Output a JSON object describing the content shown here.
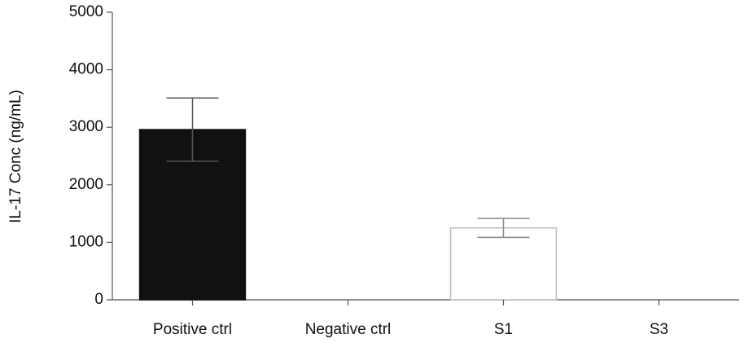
{
  "chart_data": {
    "type": "bar",
    "ylabel": "IL-17 Conc (ng/mL)",
    "categories": [
      "Positive ctrl",
      "Negative ctrl",
      "S1",
      "S3"
    ],
    "values": [
      2960,
      0,
      1250,
      0
    ],
    "errors": [
      550,
      null,
      165,
      null
    ],
    "colors": [
      "#111111",
      "#ffffff",
      "#ffffff",
      "#ffffff"
    ],
    "edgecolors": [
      "#111111",
      "#bbbbbb",
      "#bbbbbb",
      "#bbbbbb"
    ],
    "ylim": [
      0,
      5000
    ],
    "yticks": [
      0,
      1000,
      2000,
      3000,
      4000,
      5000
    ]
  }
}
